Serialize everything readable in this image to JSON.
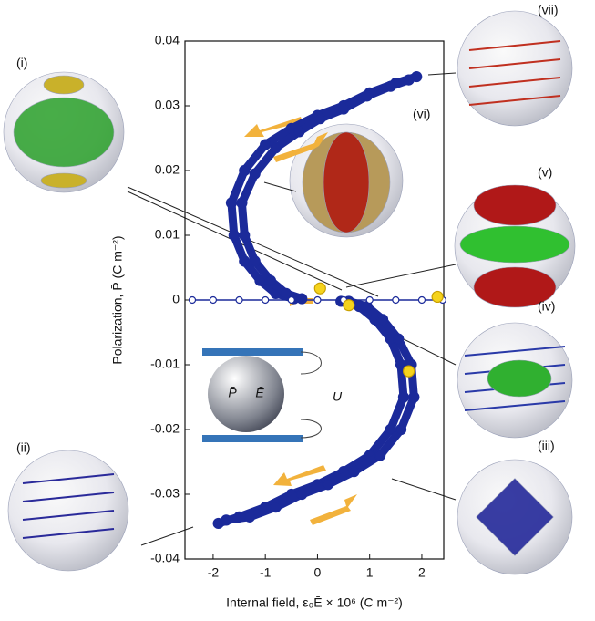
{
  "chart_data": {
    "type": "scatter",
    "xlabel": "Internal field, ε₀Ē × 10⁶ (C m⁻²)",
    "ylabel": "Polarization, P̄ (C m⁻²)",
    "xlim": [
      -2.54,
      2.42
    ],
    "ylim": [
      -0.04,
      0.04
    ],
    "xticks": [
      -2,
      -1,
      0,
      1,
      2
    ],
    "yticks": [
      -0.04,
      -0.03,
      -0.02,
      -0.01,
      0,
      0.01,
      0.02,
      0.03,
      0.04
    ],
    "annotations": [
      "(i)",
      "(ii)",
      "(iii)",
      "(iv)",
      "(v)",
      "(vi)",
      "(vii)",
      "U",
      "P̄",
      "Ē"
    ],
    "series": [
      {
        "color": "#1b2a9a",
        "marker": "filled",
        "x": [
          1.9,
          1.5,
          1.0,
          0.5,
          0,
          -0.5,
          -1.0,
          -1.4,
          -1.65,
          -1.6,
          -1.4,
          -1.1,
          -0.8,
          -0.45,
          null,
          0.45,
          0.8,
          1.1,
          1.4,
          1.6,
          1.65,
          1.4,
          1.0,
          0.5,
          0,
          -0.5,
          -1.0,
          -1.5,
          -1.9
        ],
        "values": [
          0.0345,
          0.0335,
          0.032,
          0.03,
          0.0285,
          0.0265,
          0.024,
          0.02,
          0.015,
          0.01,
          0.006,
          0.003,
          0.001,
          0.0002,
          null,
          -0.0002,
          -0.001,
          -0.003,
          -0.006,
          -0.01,
          -0.015,
          -0.02,
          -0.024,
          -0.0265,
          -0.0285,
          -0.03,
          -0.032,
          -0.0335,
          -0.0345
        ]
      },
      {
        "color": "#1b2a9a",
        "marker": "filled",
        "x": [
          1.75,
          1.4,
          0.95,
          0.5,
          0.05,
          -0.35,
          -0.8,
          -1.2,
          -1.45,
          -1.4,
          -1.2,
          -0.9,
          -0.6,
          -0.3,
          null,
          0.6,
          0.95,
          1.25,
          1.55,
          1.8,
          1.85,
          1.6,
          1.2,
          0.7,
          0.2,
          -0.3,
          -0.8,
          -1.3,
          -1.75
        ],
        "values": [
          0.034,
          0.033,
          0.0315,
          0.0295,
          0.028,
          0.026,
          0.0235,
          0.0195,
          0.015,
          0.01,
          0.006,
          0.003,
          0.001,
          0.0002,
          null,
          -0.0002,
          -0.001,
          -0.003,
          -0.006,
          -0.01,
          -0.015,
          -0.02,
          -0.024,
          -0.0265,
          -0.0285,
          -0.03,
          -0.032,
          -0.0335,
          -0.034
        ]
      },
      {
        "color": "#1b2a9a",
        "marker": "open",
        "x": [
          -2.4,
          -2.0,
          -1.5,
          -1.0,
          -0.5,
          0,
          0.5,
          1.0,
          1.5,
          2.0,
          2.4
        ],
        "values": [
          0,
          0,
          0,
          0,
          0,
          0,
          0,
          0,
          0,
          0,
          0
        ]
      },
      {
        "color": "#f5d31c",
        "marker": "filled",
        "x": [
          0.05,
          0.6,
          1.75,
          2.3
        ],
        "values": [
          0.0018,
          -0.0008,
          -0.011,
          0.0005
        ]
      }
    ]
  }
}
